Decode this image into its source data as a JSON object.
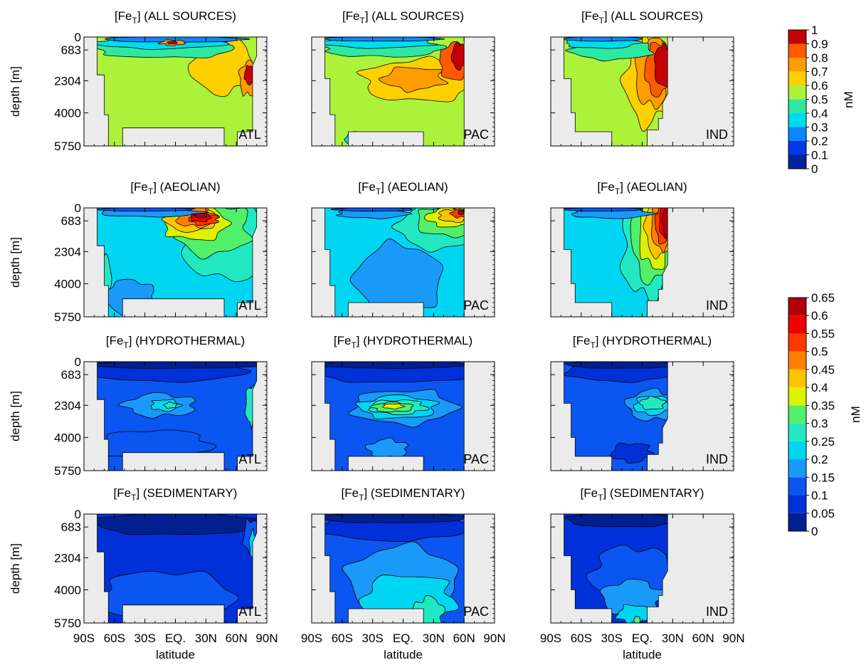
{
  "chart_data": {
    "type": "heatmap",
    "grid_cols": [
      "ATL",
      "PAC",
      "IND"
    ],
    "x_axis": {
      "label": "latitude",
      "ticks": [
        -90,
        -60,
        -30,
        0,
        30,
        60,
        90
      ],
      "tick_labels": [
        "90S",
        "60S",
        "30S",
        "EQ.",
        "30N",
        "60N",
        "90N"
      ],
      "range": [
        -90,
        90
      ]
    },
    "y_axis": {
      "label": "depth [m]",
      "ticks": [
        0,
        683,
        2304,
        4000,
        5750
      ],
      "tick_labels": [
        "0",
        "683",
        "2304",
        "4000",
        "5750"
      ],
      "range": [
        5750,
        0
      ]
    },
    "panels": [
      {
        "title_main": "[Fe",
        "title_sub": "T",
        "title_rest": "] (ALL SOURCES)",
        "basin": "ATL",
        "row": 0,
        "col": 0
      },
      {
        "title_main": "[Fe",
        "title_sub": "T",
        "title_rest": "] (ALL SOURCES)",
        "basin": "PAC",
        "row": 0,
        "col": 1
      },
      {
        "title_main": "[Fe",
        "title_sub": "T",
        "title_rest": "] (ALL SOURCES)",
        "basin": "IND",
        "row": 0,
        "col": 2
      },
      {
        "title_main": "[Fe",
        "title_sub": "T",
        "title_rest": "] (AEOLIAN)",
        "basin": "ATL",
        "row": 1,
        "col": 0
      },
      {
        "title_main": "[Fe",
        "title_sub": "T",
        "title_rest": "] (AEOLIAN)",
        "basin": "PAC",
        "row": 1,
        "col": 1
      },
      {
        "title_main": "[Fe",
        "title_sub": "T",
        "title_rest": "] (AEOLIAN)",
        "basin": "IND",
        "row": 1,
        "col": 2
      },
      {
        "title_main": "[Fe",
        "title_sub": "T",
        "title_rest": "] (HYDROTHERMAL)",
        "basin": "ATL",
        "row": 2,
        "col": 0
      },
      {
        "title_main": "[Fe",
        "title_sub": "T",
        "title_rest": "] (HYDROTHERMAL)",
        "basin": "PAC",
        "row": 2,
        "col": 1
      },
      {
        "title_main": "[Fe",
        "title_sub": "T",
        "title_rest": "] (HYDROTHERMAL)",
        "basin": "IND",
        "row": 2,
        "col": 2
      },
      {
        "title_main": "[Fe",
        "title_sub": "T",
        "title_rest": "] (SEDIMENTARY)",
        "basin": "ATL",
        "row": 3,
        "col": 0
      },
      {
        "title_main": "[Fe",
        "title_sub": "T",
        "title_rest": "] (SEDIMENTARY)",
        "basin": "PAC",
        "row": 3,
        "col": 1
      },
      {
        "title_main": "[Fe",
        "title_sub": "T",
        "title_rest": "] (SEDIMENTARY)",
        "basin": "IND",
        "row": 3,
        "col": 2
      }
    ],
    "colorbars": [
      {
        "applies_to_rows": [
          0
        ],
        "unit": "nM",
        "levels": [
          0,
          0.1,
          0.2,
          0.3,
          0.4,
          0.5,
          0.6,
          0.7,
          0.8,
          0.9,
          1
        ],
        "level_labels": [
          "0",
          "0.1",
          "0.2",
          "0.3",
          "0.4",
          "0.5",
          "0.6",
          "0.7",
          "0.8",
          "0.9",
          "1"
        ],
        "colors": [
          "#00239c",
          "#0039e6",
          "#0f86ff",
          "#00dced",
          "#2ee8a2",
          "#acf23a",
          "#ffd000",
          "#ff9c00",
          "#ff5a00",
          "#c40008"
        ]
      },
      {
        "applies_to_rows": [
          1,
          2,
          3
        ],
        "unit": "nM",
        "levels": [
          0,
          0.05,
          0.1,
          0.15,
          0.2,
          0.25,
          0.3,
          0.35,
          0.4,
          0.45,
          0.5,
          0.55,
          0.6,
          0.65
        ],
        "level_labels": [
          "0",
          "0.05",
          "0.1",
          "0.15",
          "0.2",
          "0.25",
          "0.3",
          "0.35",
          "0.4",
          "0.45",
          "0.5",
          "0.55",
          "0.6",
          "0.65"
        ],
        "colors": [
          "#002090",
          "#0030d8",
          "#0b55f0",
          "#1a9af8",
          "#00d6f2",
          "#22e8c2",
          "#52f06a",
          "#dcf200",
          "#ffc400",
          "#ff8000",
          "#ff3a00",
          "#ee0000",
          "#b10008"
        ]
      }
    ],
    "colors": {
      "land": "#ebebeb",
      "contour": "#000000"
    }
  }
}
